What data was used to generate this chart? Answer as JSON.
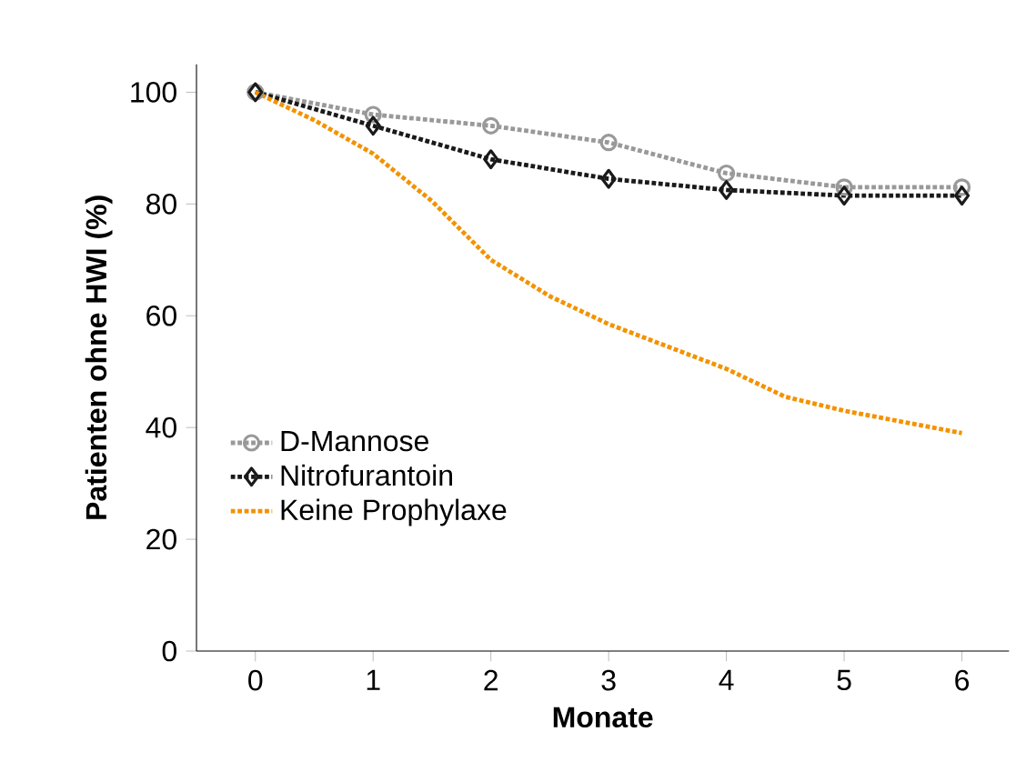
{
  "chart_data": {
    "type": "line",
    "xlabel": "Monate",
    "ylabel": "Patienten ohne HWI (%)",
    "xlim": [
      -0.5,
      6.4
    ],
    "ylim": [
      0,
      105
    ],
    "xticks": [
      0,
      1,
      2,
      3,
      4,
      5,
      6
    ],
    "yticks": [
      0,
      20,
      40,
      60,
      80,
      100
    ],
    "grid": false,
    "legend": "left",
    "line_style": "dotted",
    "series": [
      {
        "name": "D-Mannose",
        "color": "#999999",
        "marker": "circle",
        "x": [
          0,
          1,
          2,
          3,
          4,
          5,
          6
        ],
        "values": [
          100,
          96,
          94,
          91,
          85.5,
          83,
          83
        ]
      },
      {
        "name": "Nitrofurantoin",
        "color": "#1a1a1a",
        "marker": "diamond",
        "x": [
          0,
          1,
          2,
          3,
          4,
          5,
          6
        ],
        "values": [
          100,
          94,
          88,
          84.5,
          82.5,
          81.5,
          81.5
        ]
      },
      {
        "name": "Keine Prophylaxe",
        "color": "#f39200",
        "marker": "none",
        "x": [
          0,
          0.5,
          1,
          1.5,
          2,
          2.5,
          3,
          3.5,
          4,
          4.5,
          5,
          5.5,
          6
        ],
        "values": [
          100,
          95,
          89,
          80.5,
          70,
          63.5,
          58.5,
          54.5,
          50.5,
          45.5,
          43,
          41,
          39
        ]
      }
    ]
  }
}
